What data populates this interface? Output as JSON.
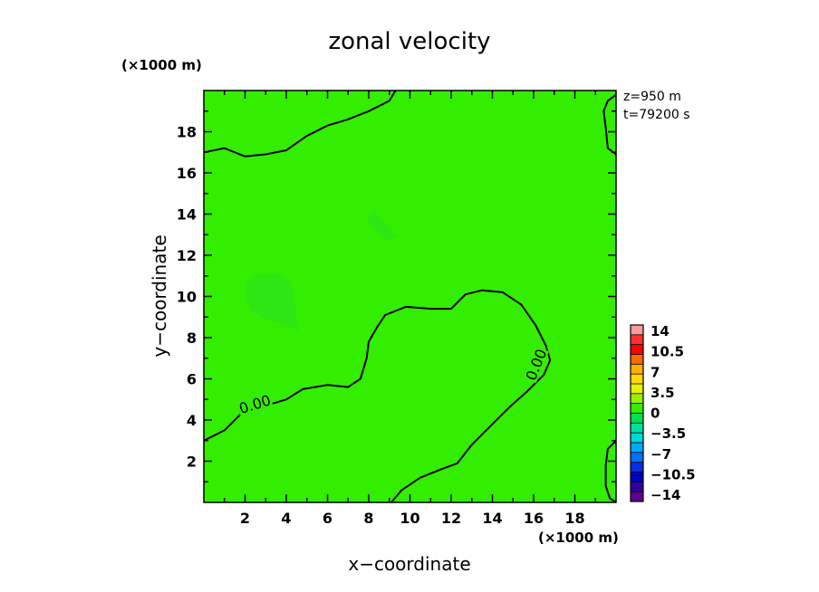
{
  "chart_data": {
    "type": "heatmap",
    "title": "zonal velocity",
    "xlabel": "x−coordinate",
    "ylabel": "y−coordinate",
    "x_unit": "(×1000 m)",
    "y_unit": "(×1000 m)",
    "xlim": [
      0,
      20
    ],
    "ylim": [
      0,
      20
    ],
    "xticks": [
      "2",
      "4",
      "6",
      "8",
      "10",
      "12",
      "14",
      "16",
      "18"
    ],
    "yticks": [
      "2",
      "4",
      "6",
      "8",
      "10",
      "12",
      "14",
      "16",
      "18"
    ],
    "info": [
      "z=950 m",
      "t=79200 s"
    ],
    "background_color": "#33ee00",
    "colorbar": {
      "labels": [
        "14",
        "10.5",
        "7",
        "3.5",
        "0",
        "−3.5",
        "−7",
        "−10.5",
        "−14"
      ],
      "colors": [
        "#ff9a9a",
        "#ff3030",
        "#ff0000",
        "#ff6a00",
        "#ffb000",
        "#ffd800",
        "#e6f000",
        "#9af000",
        "#33ee00",
        "#00e050",
        "#00e0a0",
        "#00d8d8",
        "#00a8ff",
        "#0070ff",
        "#0030e0",
        "#0000c0",
        "#3000a0",
        "#600090"
      ]
    },
    "contour_labels": [
      "0.00",
      "0.00"
    ],
    "contours": [
      {
        "name": "upper",
        "points": [
          [
            0,
            17
          ],
          [
            1,
            17.2
          ],
          [
            2,
            16.8
          ],
          [
            3,
            16.9
          ],
          [
            4,
            17.1
          ],
          [
            5,
            17.8
          ],
          [
            6,
            18.3
          ],
          [
            7,
            18.6
          ],
          [
            8,
            19
          ],
          [
            9,
            19.5
          ],
          [
            9.3,
            20
          ]
        ]
      },
      {
        "name": "middle",
        "points": [
          [
            0,
            3
          ],
          [
            1,
            3.5
          ],
          [
            1.8,
            4.3
          ],
          [
            3,
            4.7
          ],
          [
            4,
            5
          ],
          [
            4.8,
            5.5
          ],
          [
            6,
            5.7
          ],
          [
            7,
            5.6
          ],
          [
            7.6,
            6
          ],
          [
            7.9,
            7
          ],
          [
            8,
            7.8
          ],
          [
            8.4,
            8.5
          ],
          [
            8.8,
            9.1
          ],
          [
            9.8,
            9.5
          ],
          [
            11,
            9.4
          ],
          [
            12,
            9.4
          ],
          [
            12.7,
            10.1
          ],
          [
            13.5,
            10.3
          ],
          [
            14.5,
            10.2
          ],
          [
            15.4,
            9.6
          ],
          [
            16.1,
            8.6
          ],
          [
            16.6,
            7.6
          ],
          [
            16.8,
            6.9
          ],
          [
            16.5,
            6.2
          ],
          [
            15.7,
            5.4
          ],
          [
            14.8,
            4.6
          ],
          [
            13.8,
            3.6
          ],
          [
            13,
            2.8
          ],
          [
            12.3,
            1.9
          ],
          [
            11.5,
            1.6
          ],
          [
            10.5,
            1.2
          ],
          [
            9.6,
            0.6
          ],
          [
            9.1,
            0
          ]
        ]
      },
      {
        "name": "right-top",
        "points": [
          [
            20,
            19.8
          ],
          [
            19.6,
            19.5
          ],
          [
            19.4,
            19
          ],
          [
            19.5,
            18.2
          ],
          [
            19.6,
            17.2
          ],
          [
            20,
            16.9
          ]
        ]
      },
      {
        "name": "right-bottom",
        "points": [
          [
            20,
            3
          ],
          [
            19.6,
            2.6
          ],
          [
            19.5,
            1.8
          ],
          [
            19.5,
            0.8
          ],
          [
            19.7,
            0.2
          ],
          [
            20,
            0
          ]
        ]
      }
    ],
    "weak_regions": [
      {
        "name": "blob-left",
        "points": [
          [
            2,
            10.7
          ],
          [
            2.6,
            11.1
          ],
          [
            3.6,
            11.1
          ],
          [
            4.2,
            10.8
          ],
          [
            4.4,
            10
          ],
          [
            4.5,
            9
          ],
          [
            4.6,
            8.3
          ],
          [
            4,
            8.6
          ],
          [
            3,
            8.9
          ],
          [
            2.3,
            9.3
          ],
          [
            2,
            10
          ]
        ]
      },
      {
        "name": "blob-right",
        "points": [
          [
            7.9,
            13.9
          ],
          [
            8.3,
            14.1
          ],
          [
            8.7,
            13.7
          ],
          [
            9.1,
            13.2
          ],
          [
            9.4,
            12.9
          ],
          [
            9,
            12.7
          ],
          [
            8.4,
            13.1
          ],
          [
            8.1,
            13.4
          ]
        ]
      }
    ],
    "weak_color": "#2ee614",
    "grid": false,
    "legend": "right"
  }
}
